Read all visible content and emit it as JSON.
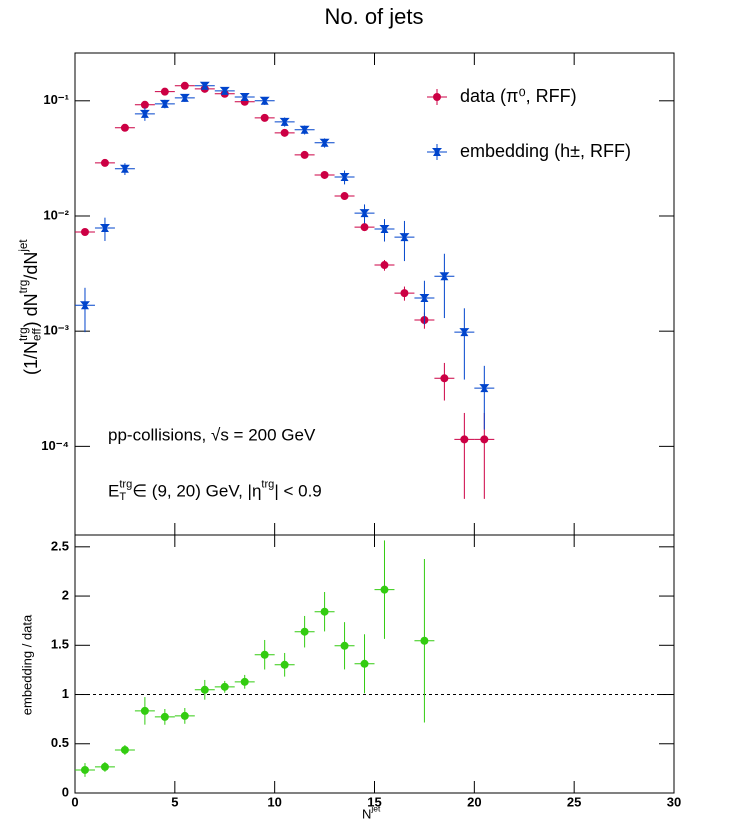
{
  "chart_data": [
    {
      "type": "scatter",
      "title": "No. of jets",
      "y_label": [
        "(1/N",
        "trg",
        "eff",
        ") dN",
        "trg",
        "/dN",
        "jet"
      ],
      "log_y": true,
      "legend": "top-right",
      "x": [
        0.5,
        1.5,
        2.5,
        3.5,
        4.5,
        5.5,
        6.5,
        7.5,
        8.5,
        9.5,
        10.5,
        11.5,
        12.5,
        13.5,
        14.5,
        15.5,
        16.5,
        17.5,
        18.5,
        19.5,
        20.5
      ],
      "xlim": [
        0,
        30
      ],
      "ylim": [
        1.7e-05,
        0.26
      ],
      "yticks": [
        {
          "value": 0.0001,
          "label": "10⁻⁴"
        },
        {
          "value": 0.001,
          "label": "10⁻³"
        },
        {
          "value": 0.01,
          "label": "10⁻²"
        },
        {
          "value": 0.1,
          "label": "10⁻¹"
        }
      ],
      "annotations": [
        [
          "pp-collisions, √s = 200 GeV"
        ],
        [
          "E",
          "trg",
          "T",
          " ∈ (9, 20) GeV, |η",
          "trg",
          "| < 0.9"
        ]
      ],
      "series": [
        {
          "name": "data (π⁰, RFF)",
          "color": "#cc0044",
          "values": [
            0.00726,
            0.0289,
            0.0583,
            0.0923,
            0.12,
            0.135,
            0.127,
            0.115,
            0.098,
            0.0711,
            0.0527,
            0.0339,
            0.0227,
            0.0149,
            0.008,
            0.00375,
            0.00214,
            0.00125,
            0.00039,
            0.000115,
            0.000115
          ],
          "errors": [
            0.0005,
            0.001,
            0.002,
            0.003,
            0.003,
            0.003,
            0.003,
            0.003,
            0.003,
            0.002,
            0.002,
            0.001,
            0.001,
            0.0008,
            0.0006,
            0.0004,
            0.0003,
            0.0002,
            0.00014,
            8e-05,
            8e-05
          ]
        },
        {
          "name": "embedding (h±, RFF)",
          "color": "#0044cc",
          "values": [
            0.00168,
            0.00787,
            0.0257,
            0.077,
            0.094,
            0.106,
            0.135,
            0.122,
            0.108,
            0.1,
            0.0657,
            0.056,
            0.0432,
            0.0218,
            0.0106,
            0.0077,
            0.00656,
            0.00194,
            0.003,
            0.00098,
            0.00032
          ],
          "errors": [
            0.0007,
            0.0018,
            0.003,
            0.01,
            0.008,
            0.008,
            0.01,
            0.008,
            0.008,
            0.008,
            0.006,
            0.005,
            0.004,
            0.003,
            0.002,
            0.0017,
            0.0025,
            0.0008,
            0.0017,
            0.0006,
            0.00018
          ]
        }
      ]
    },
    {
      "type": "scatter",
      "x_label": [
        "N",
        "jet"
      ],
      "y_label": "embedding / data",
      "x": [
        0.5,
        1.5,
        2.5,
        3.5,
        4.5,
        5.5,
        6.5,
        7.5,
        8.5,
        9.5,
        10.5,
        11.5,
        12.5,
        13.5,
        14.5,
        15.5,
        16.5,
        17.5
      ],
      "xlim": [
        0,
        30
      ],
      "xticks": [
        0,
        5,
        10,
        15,
        20,
        25,
        30
      ],
      "ylim": [
        0,
        2.62
      ],
      "yticks": [
        0,
        0.5,
        1,
        1.5,
        2,
        2.5
      ],
      "ref_line": 1,
      "series": [
        {
          "color": "#33cc11",
          "values": [
            0.234,
            0.265,
            0.437,
            0.834,
            0.773,
            0.783,
            1.048,
            1.078,
            1.129,
            1.404,
            1.302,
            1.638,
            1.841,
            1.495,
            1.312,
            2.065,
            null,
            1.546
          ],
          "errors": [
            0.07,
            0.05,
            0.05,
            0.14,
            0.08,
            0.08,
            0.1,
            0.06,
            0.07,
            0.15,
            0.12,
            0.16,
            0.2,
            0.24,
            0.3,
            0.5,
            null,
            0.83
          ]
        }
      ]
    }
  ]
}
